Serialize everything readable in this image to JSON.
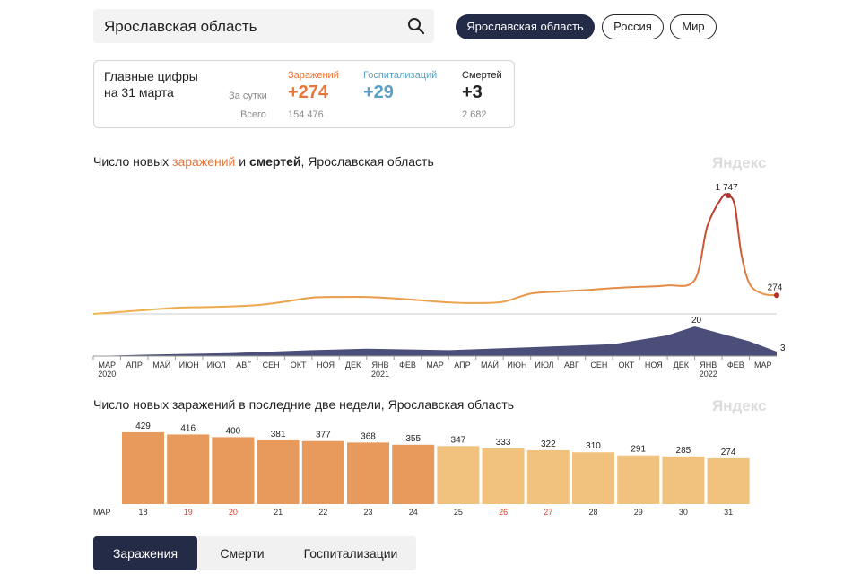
{
  "search": {
    "value": "Ярославская область"
  },
  "region_tabs": [
    {
      "label": "Ярославская область",
      "active": true
    },
    {
      "label": "Россия",
      "active": false
    },
    {
      "label": "Мир",
      "active": false
    }
  ],
  "summary": {
    "title_line1": "Главные цифры",
    "title_line2": "на 31 марта",
    "row_day_label": "За сутки",
    "row_total_label": "Всего",
    "infections": {
      "label": "Заражений",
      "day": "+274",
      "total": "154 476",
      "color": "#e8763a"
    },
    "hospitalizations": {
      "label": "Госпитализаций",
      "day": "+29",
      "total": "",
      "color": "#5a9fc4"
    },
    "deaths": {
      "label": "Смертей",
      "day": "+3",
      "total": "2 682",
      "color": "#222222"
    }
  },
  "chart1": {
    "title_pre": "Число новых ",
    "title_infections": "заражений",
    "title_and": " и ",
    "title_deaths": "смертей",
    "title_post": ", Ярославская область",
    "watermark": "Яндекс",
    "peak_label": "1 747",
    "last_label": "274",
    "deaths_peak_label": "20",
    "deaths_last_label": "3",
    "month_labels": [
      "МАР",
      "АПР",
      "МАЙ",
      "ИЮН",
      "ИЮЛ",
      "АВГ",
      "СЕН",
      "ОКТ",
      "НОЯ",
      "ДЕК",
      "ЯНВ",
      "ФЕВ",
      "МАР",
      "АПР",
      "МАЙ",
      "ИЮН",
      "ИЮЛ",
      "АВГ",
      "СЕН",
      "ОКТ",
      "НОЯ",
      "ДЕК",
      "ЯНВ",
      "ФЕВ",
      "МАР"
    ],
    "year_labels": [
      "2020",
      "2021",
      "2022"
    ]
  },
  "chart_data": [
    {
      "type": "line",
      "title": "Число новых заражений и смертей, Ярославская область",
      "series": [
        {
          "name": "заражений",
          "x": [
            "2020-03",
            "2020-04",
            "2020-05",
            "2020-06",
            "2020-07",
            "2020-08",
            "2020-09",
            "2020-10",
            "2020-11",
            "2020-12",
            "2021-01",
            "2021-02",
            "2021-03",
            "2021-04",
            "2021-05",
            "2021-06",
            "2021-07",
            "2021-08",
            "2021-09",
            "2021-10",
            "2021-11",
            "2021-12",
            "2022-01",
            "2022-01-15",
            "2022-02",
            "2022-02-08",
            "2022-02-15",
            "2022-02-22",
            "2022-03",
            "2022-03-15",
            "2022-03-31"
          ],
          "values": [
            0,
            30,
            60,
            90,
            100,
            110,
            130,
            180,
            240,
            250,
            250,
            230,
            200,
            170,
            160,
            180,
            300,
            330,
            350,
            380,
            400,
            420,
            500,
            1300,
            1720,
            1747,
            1600,
            900,
            450,
            300,
            274
          ]
        },
        {
          "name": "смертей",
          "x": [
            "2020-03",
            "2020-05",
            "2020-08",
            "2020-11",
            "2021-01",
            "2021-04",
            "2021-07",
            "2021-10",
            "2021-12",
            "2022-01",
            "2022-02",
            "2022-03",
            "2022-03-31"
          ],
          "values": [
            0,
            1,
            2,
            4,
            5,
            4,
            6,
            8,
            14,
            20,
            15,
            10,
            3
          ]
        }
      ]
    },
    {
      "type": "bar",
      "title": "Число новых заражений в последние две недели, Ярославская область",
      "categories": [
        "18",
        "19",
        "20",
        "21",
        "22",
        "23",
        "24",
        "25",
        "26",
        "27",
        "28",
        "29",
        "30",
        "31"
      ],
      "values": [
        429,
        416,
        400,
        381,
        377,
        368,
        355,
        347,
        333,
        322,
        310,
        291,
        285,
        274
      ],
      "highlighted_days": [
        "19",
        "20",
        "26",
        "27"
      ],
      "month_label": "МАР",
      "watermark": "Яндекс"
    }
  ],
  "bottom_tabs": [
    {
      "label": "Заражения",
      "active": true
    },
    {
      "label": "Смерти",
      "active": false
    },
    {
      "label": "Госпитализации",
      "active": false
    }
  ],
  "colors": {
    "accent_dark": "#242b47",
    "infections_line": "#f0b552",
    "infections_peak": "#b4302a",
    "deaths_area": "#4a4e78",
    "bar_dark": "#e89a5c",
    "bar_light": "#f1c27d",
    "weekend_tick": "#d9412b"
  }
}
